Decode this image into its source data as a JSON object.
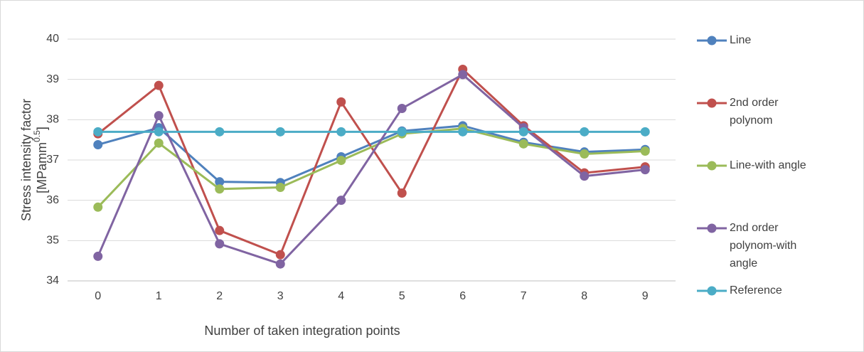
{
  "chart_data": {
    "type": "line",
    "x_label": "Number of taken integration points",
    "y_label": {
      "main": "Stress intensity factor",
      "unit": "[MPamm",
      "superscript": "0.5",
      "close": "]"
    },
    "categories": [
      "0",
      "1",
      "2",
      "3",
      "4",
      "5",
      "6",
      "7",
      "8",
      "9"
    ],
    "series": [
      {
        "name": "Line",
        "color": "#4f81bd",
        "values": [
          37.38,
          37.8,
          36.46,
          36.44,
          37.08,
          37.72,
          37.85,
          37.44,
          37.2,
          37.26
        ]
      },
      {
        "name": "2nd order polynom",
        "color": "#c0504d",
        "values": [
          37.65,
          38.85,
          35.25,
          34.65,
          38.44,
          36.18,
          39.25,
          37.85,
          36.68,
          36.83
        ]
      },
      {
        "name": "Line-with angle",
        "color": "#9bbb59",
        "values": [
          35.83,
          37.42,
          36.28,
          36.32,
          36.99,
          37.65,
          37.78,
          37.4,
          37.15,
          37.22
        ]
      },
      {
        "name": "2nd order polynom-with angle",
        "color": "#8064a2",
        "values": [
          34.61,
          38.1,
          34.92,
          34.42,
          36.0,
          38.28,
          39.12,
          37.8,
          36.6,
          36.76
        ]
      },
      {
        "name": "Reference",
        "color": "#4bacc6",
        "values": [
          37.7,
          37.7,
          37.7,
          37.7,
          37.7,
          37.7,
          37.7,
          37.7,
          37.7,
          37.7
        ]
      }
    ],
    "ylim": [
      34,
      40
    ],
    "yticks": [
      34,
      35,
      36,
      37,
      38,
      39,
      40
    ],
    "grid": true,
    "legend": "right"
  }
}
